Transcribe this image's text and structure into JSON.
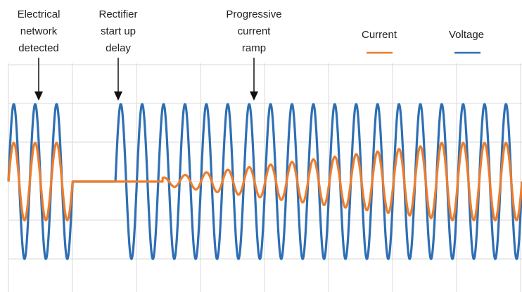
{
  "chart_data": {
    "type": "line",
    "title": "",
    "xlabel": "",
    "ylabel": "",
    "grid": true,
    "legend_position": "top-right",
    "xlim": [
      0,
      24
    ],
    "ylim": [
      -1.2,
      1.2
    ],
    "cycles_visible": 24,
    "series": [
      {
        "name": "Current",
        "color": "#ee7d2c",
        "segments": [
          {
            "x": [
              0,
              3
            ],
            "amplitude": 0.5,
            "form": "sine"
          },
          {
            "x": [
              3,
              7.2
            ],
            "amplitude": 0,
            "form": "flat"
          },
          {
            "x": [
              7.2,
              20
            ],
            "amplitude_start": 0.05,
            "amplitude_end": 0.48,
            "form": "sine-ramp"
          },
          {
            "x": [
              20,
              24
            ],
            "amplitude": 0.5,
            "form": "sine"
          }
        ]
      },
      {
        "name": "Voltage",
        "color": "#2e6fb3",
        "segments": [
          {
            "x": [
              0,
              3
            ],
            "amplitude": 1.0,
            "form": "sine"
          },
          {
            "x": [
              3,
              5
            ],
            "amplitude": 0,
            "form": "flat"
          },
          {
            "x": [
              5,
              24
            ],
            "amplitude": 1.0,
            "form": "sine"
          }
        ]
      }
    ],
    "annotations": [
      {
        "name": "network",
        "lines": [
          "Electrical",
          "network",
          "detected"
        ],
        "x": 1.5
      },
      {
        "name": "rectifier",
        "lines": [
          "Rectifier",
          "start up",
          "delay"
        ],
        "x": 5
      },
      {
        "name": "ramp",
        "lines": [
          "Progressive",
          "current",
          "ramp"
        ],
        "x": 11.5
      }
    ]
  }
}
